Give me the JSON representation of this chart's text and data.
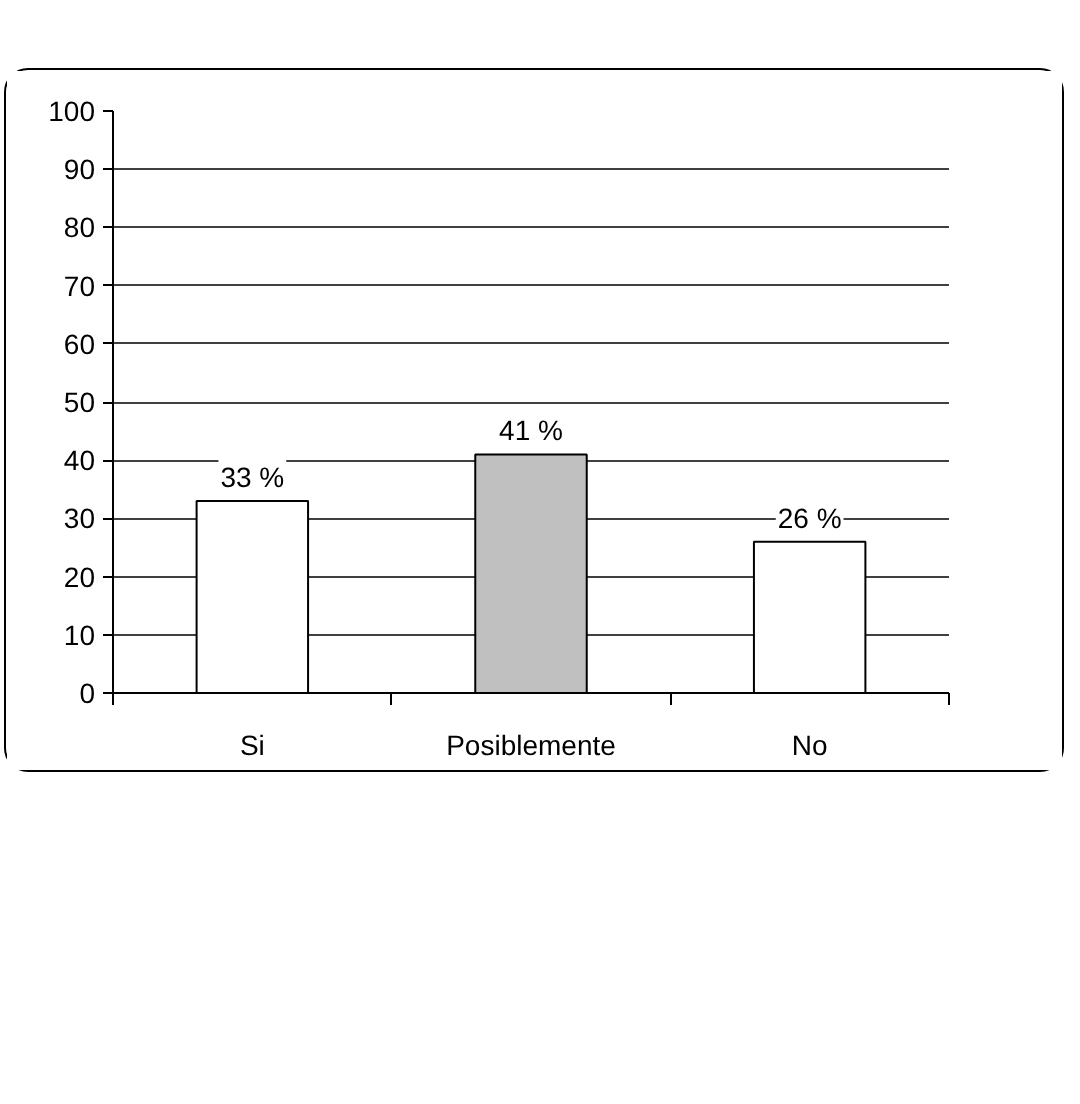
{
  "chart_data": {
    "type": "bar",
    "categories": [
      "Si",
      "Posiblemente",
      "No"
    ],
    "values": [
      33,
      41,
      26
    ],
    "colors": [
      "#ffffff",
      "#c0c0c0",
      "#ffffff"
    ],
    "value_labels": [
      "33 %",
      "41 %",
      "26 %"
    ],
    "ylim": [
      0,
      100
    ],
    "yticks": [
      0,
      10,
      20,
      30,
      40,
      50,
      60,
      70,
      80,
      90,
      100
    ],
    "grid": "y"
  }
}
